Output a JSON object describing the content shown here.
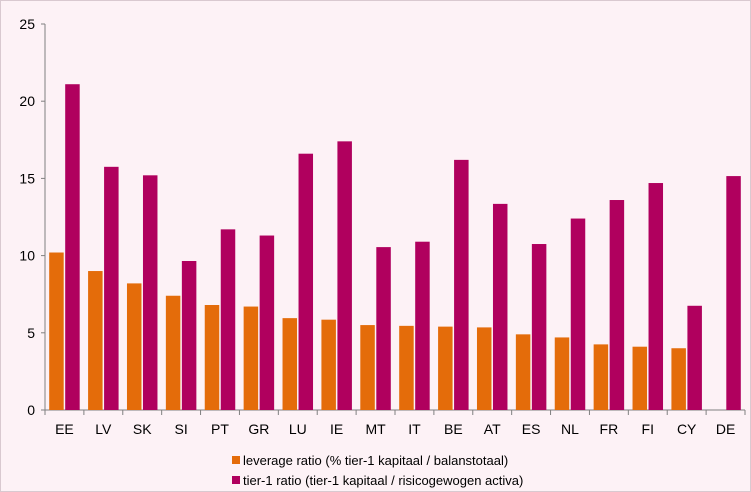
{
  "chart_data": {
    "type": "bar",
    "title": "",
    "xlabel": "",
    "ylabel": "",
    "ylim": [
      0,
      25
    ],
    "yticks": [
      0,
      5,
      10,
      15,
      20,
      25
    ],
    "grid": false,
    "legend_position": "bottom",
    "categories": [
      "EE",
      "LV",
      "SK",
      "SI",
      "PT",
      "GR",
      "LU",
      "IE",
      "MT",
      "IT",
      "BE",
      "AT",
      "ES",
      "NL",
      "FR",
      "FI",
      "CY",
      "DE"
    ],
    "series": [
      {
        "name": "leverage ratio (% tier-1 kapitaal / balanstotaal)",
        "color": "#e46c0a",
        "values": [
          10.2,
          9.0,
          8.2,
          7.4,
          6.8,
          6.7,
          5.95,
          5.85,
          5.5,
          5.45,
          5.4,
          5.35,
          4.9,
          4.7,
          4.25,
          4.1,
          4.0,
          null
        ]
      },
      {
        "name": "tier-1 ratio (tier-1 kapitaal / risicogewogen activa)",
        "color": "#b0005e",
        "values": [
          21.1,
          15.75,
          15.2,
          9.65,
          11.7,
          11.3,
          16.6,
          17.4,
          10.55,
          10.9,
          16.2,
          13.35,
          10.75,
          12.4,
          13.6,
          14.7,
          6.75,
          15.15
        ]
      }
    ]
  }
}
